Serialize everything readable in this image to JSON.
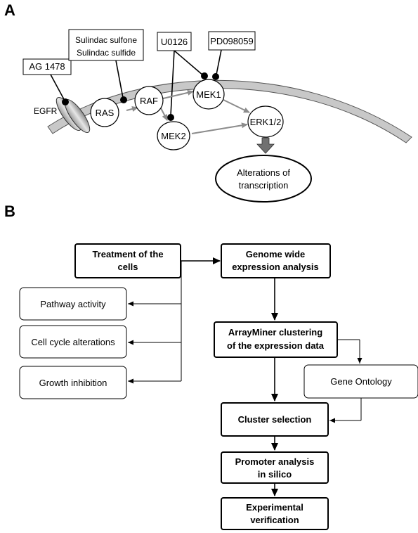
{
  "panel_a": {
    "label": "A",
    "boxes": {
      "ag1478": "AG 1478",
      "sulindac_line1": "Sulindac sulfone",
      "sulindac_line2": "Sulindac sulfide",
      "u0126": "U0126",
      "pd098059": "PD098059"
    },
    "nodes": {
      "egfr": "EGFR",
      "ras": "RAS",
      "raf": "RAF",
      "mek1": "MEK1",
      "mek2": "MEK2",
      "erk": "ERK1/2",
      "alterations_line1": "Alterations of",
      "alterations_line2": "transcription"
    }
  },
  "panel_b": {
    "label": "B",
    "steps": {
      "treatment_line1": "Treatment of the",
      "treatment_line2": "cells",
      "genome_line1": "Genome wide",
      "genome_line2": "expression analysis",
      "arrayminer_line1": "ArrayMiner clustering",
      "arrayminer_line2": "of the expression data",
      "cluster_selection": "Cluster selection",
      "promoter_line1": "Promoter analysis",
      "promoter_line2": "in silico",
      "experimental_line1": "Experimental",
      "experimental_line2": "verification"
    },
    "side_boxes": {
      "pathway": "Pathway activity",
      "cell_cycle": "Cell cycle alterations",
      "growth": "Growth inhibition",
      "gene_ontology": "Gene Ontology"
    }
  },
  "colors": {
    "membrane": "#c8c8c8",
    "pathway_arrow": "#8c8c8c",
    "block_arrow": "#707070"
  }
}
